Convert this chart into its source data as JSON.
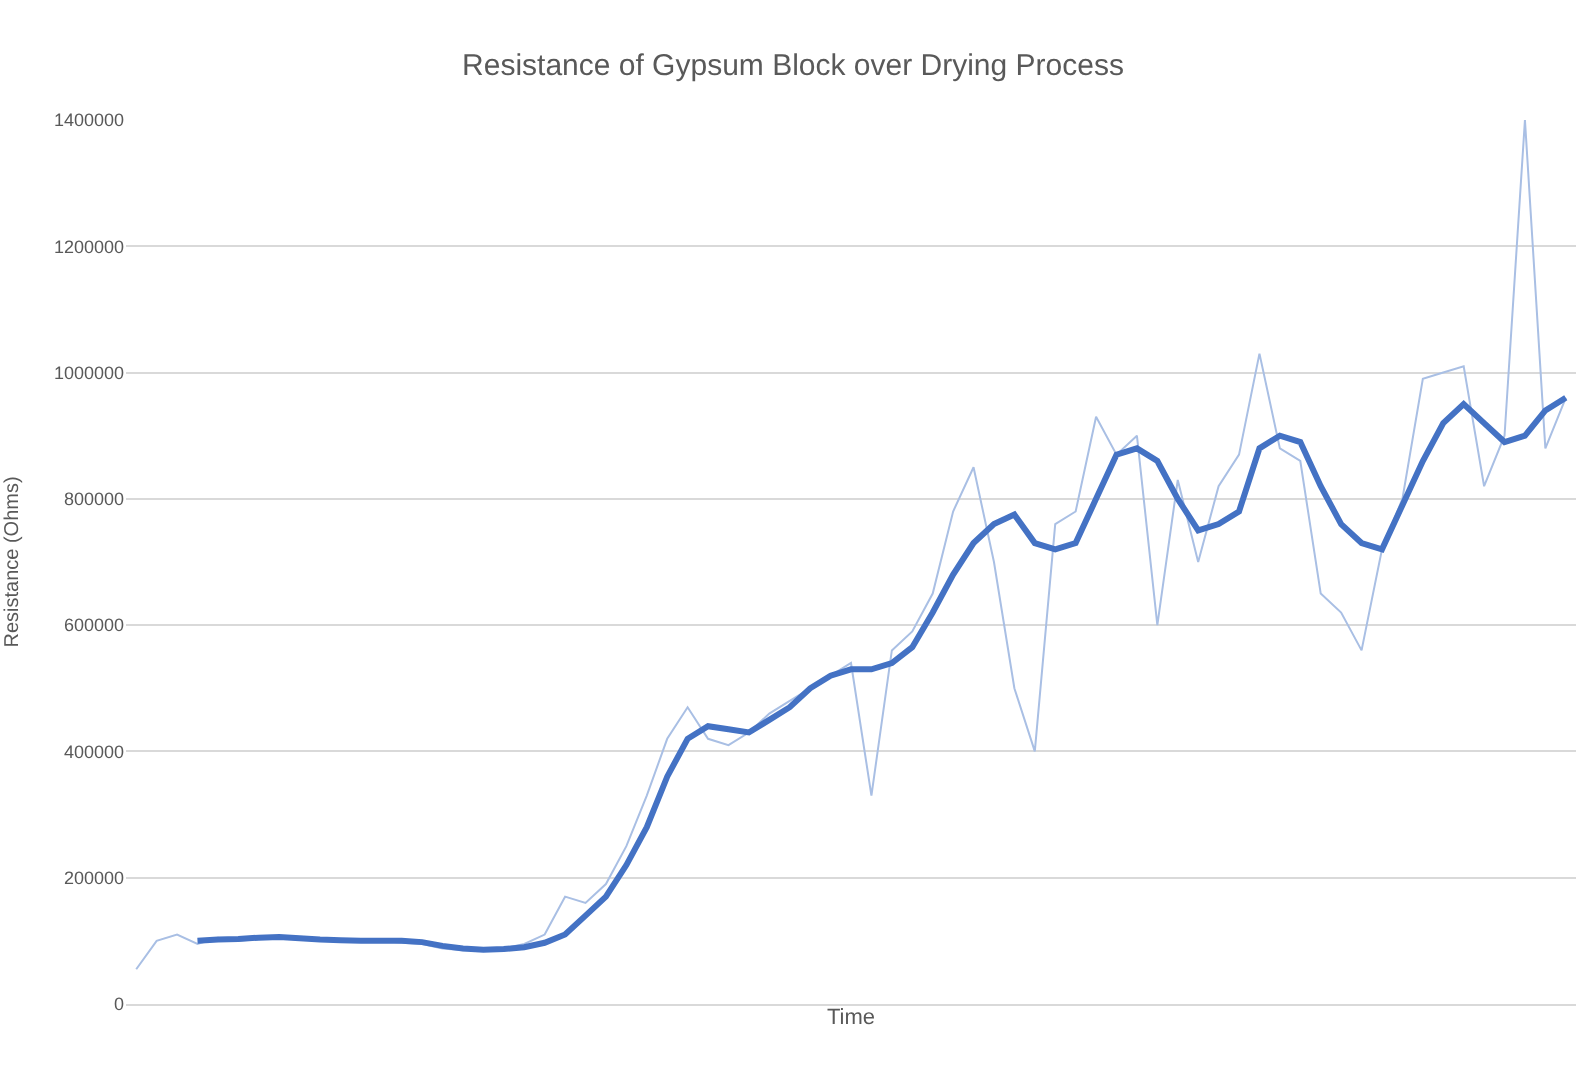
{
  "chart_data": {
    "type": "line",
    "title": "Resistance of Gypsum Block over Drying Process",
    "xlabel": "Time",
    "ylabel": "Resistance (Ohms)",
    "categories": [
      null,
      null,
      null,
      null,
      null,
      null,
      null,
      null,
      null,
      null,
      null,
      null,
      null,
      null,
      null,
      null,
      null,
      null,
      null,
      null,
      null,
      null,
      null,
      null,
      null,
      null,
      null,
      null,
      null,
      null,
      null,
      null,
      null,
      null,
      null,
      null,
      null,
      null,
      null,
      null,
      null,
      null,
      null,
      null,
      null,
      null,
      null,
      null,
      null,
      null,
      null,
      null,
      null,
      null,
      null,
      null,
      null,
      null,
      null,
      null,
      null,
      null,
      null,
      null,
      null,
      null,
      null,
      null,
      null,
      null,
      null
    ],
    "series": [
      {
        "color": "#a9bfe4",
        "values": [
          55000,
          100000,
          110000,
          95000,
          105000,
          100000,
          103000,
          105000,
          102000,
          100000,
          100000,
          98000,
          100000,
          97000,
          95000,
          88000,
          85000,
          85000,
          88000,
          95000,
          110000,
          170000,
          160000,
          190000,
          250000,
          330000,
          420000,
          470000,
          420000,
          410000,
          430000,
          460000,
          480000,
          500000,
          520000,
          540000,
          330000,
          560000,
          590000,
          650000,
          780000,
          850000,
          700000,
          500000,
          400000,
          760000,
          780000,
          930000,
          870000,
          900000,
          600000,
          830000,
          700000,
          820000,
          870000,
          1030000,
          880000,
          860000,
          650000,
          620000,
          560000,
          720000,
          800000,
          990000,
          1000000,
          1010000,
          820000,
          900000,
          1400000,
          880000,
          960000
        ]
      },
      {
        "color": "#4472c4",
        "values": [
          null,
          null,
          null,
          100000,
          102000,
          103000,
          105000,
          106000,
          104000,
          102000,
          101000,
          100000,
          100000,
          100000,
          98000,
          92000,
          88000,
          86000,
          87000,
          90000,
          97000,
          110000,
          140000,
          170000,
          220000,
          280000,
          360000,
          420000,
          440000,
          435000,
          430000,
          450000,
          470000,
          500000,
          520000,
          530000,
          530000,
          540000,
          565000,
          620000,
          680000,
          730000,
          760000,
          775000,
          730000,
          720000,
          730000,
          800000,
          870000,
          880000,
          860000,
          800000,
          750000,
          760000,
          780000,
          880000,
          900000,
          890000,
          820000,
          760000,
          730000,
          720000,
          790000,
          860000,
          920000,
          950000,
          920000,
          890000,
          900000,
          940000,
          960000
        ]
      }
    ],
    "ylim": [
      0,
      1400000
    ],
    "yticks": [
      0,
      200000,
      400000,
      600000,
      800000,
      1000000,
      1200000,
      1400000
    ],
    "grid": "y",
    "tick_labels": "y",
    "marker": "none",
    "line_style": "solid"
  }
}
